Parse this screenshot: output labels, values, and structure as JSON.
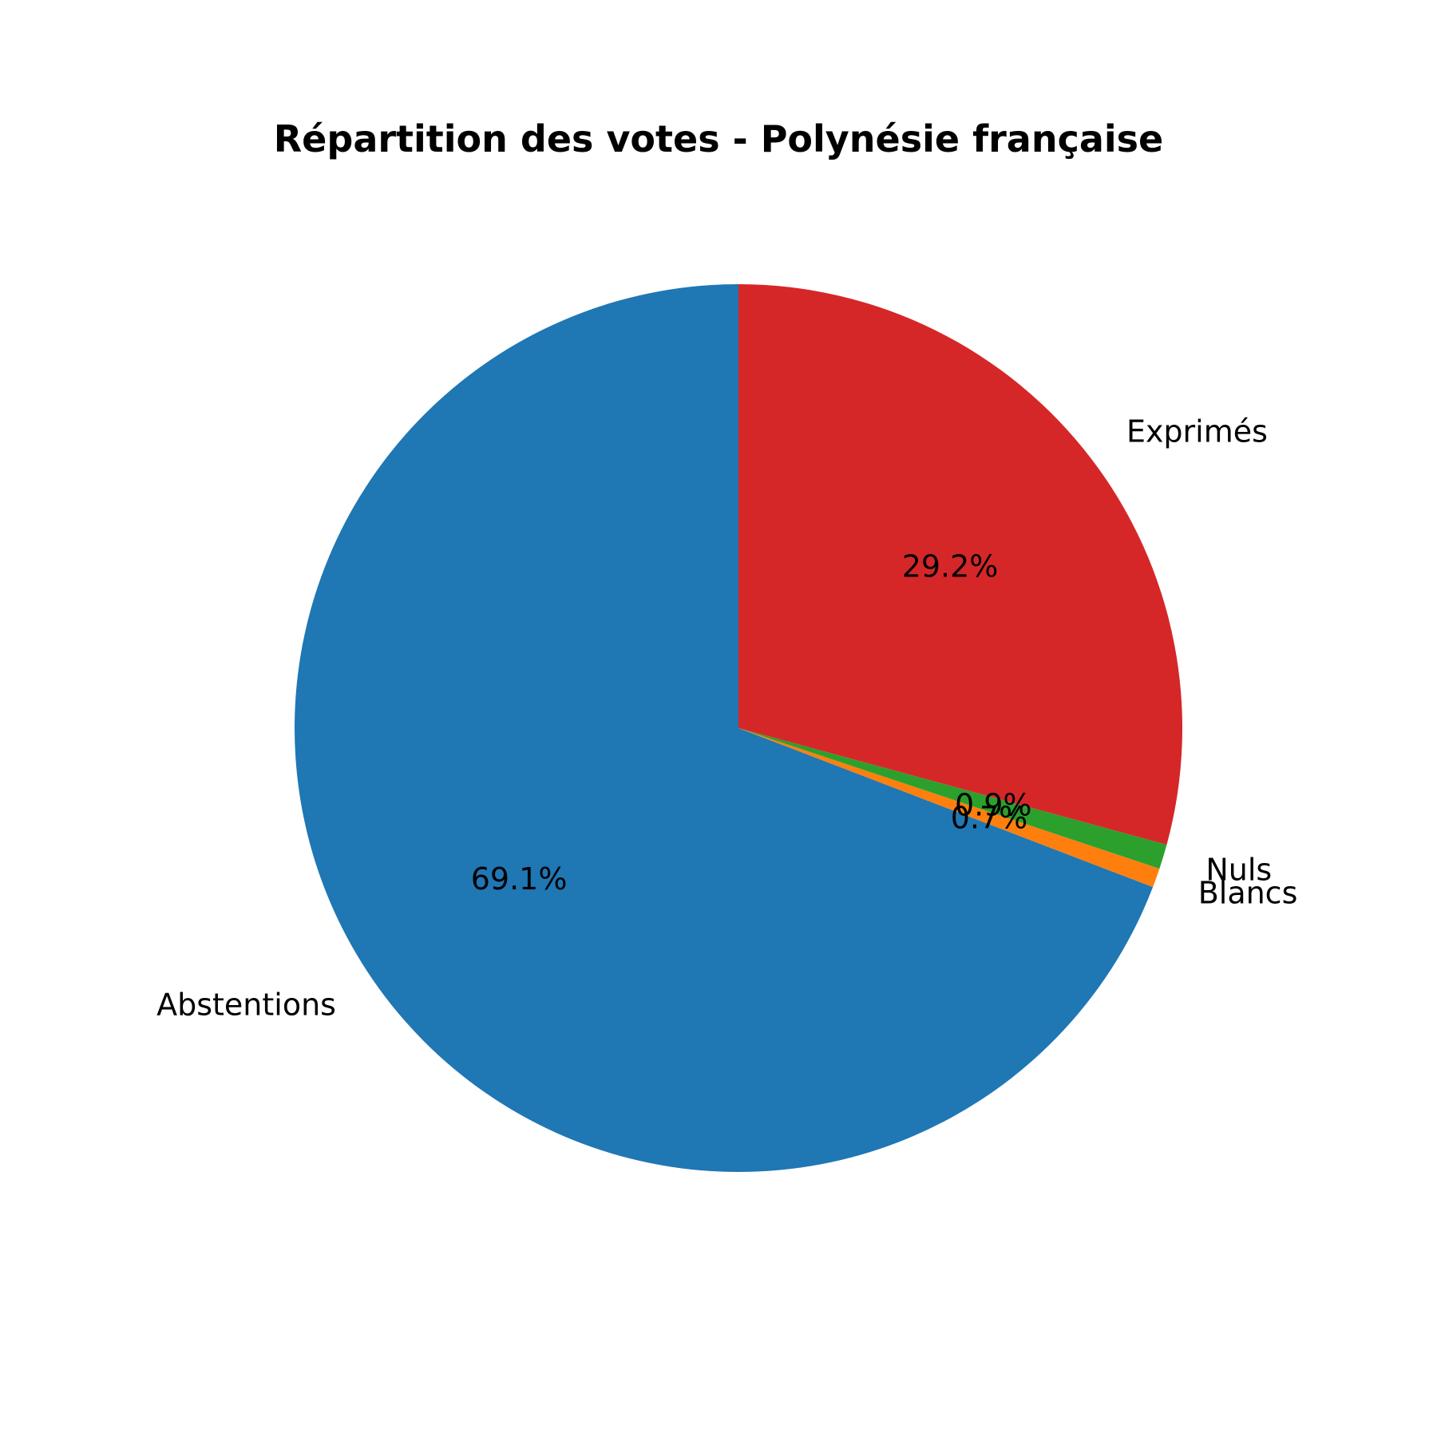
{
  "chart_data": {
    "type": "pie",
    "title": "Répartition des votes - Polynésie française",
    "start_angle_deg": 90,
    "direction": "counterclockwise",
    "slices": [
      {
        "label": "Abstentions",
        "value": 69.1,
        "pct_text": "69.1%",
        "color": "#1f77b4"
      },
      {
        "label": "Blancs",
        "value": 0.7,
        "pct_text": "0.7%",
        "color": "#ff7f0e"
      },
      {
        "label": "Nuls",
        "value": 0.9,
        "pct_text": "0.9%",
        "color": "#2ca02c"
      },
      {
        "label": "Exprimés",
        "value": 29.2,
        "pct_text": "29.2%",
        "color": "#d62728"
      }
    ]
  }
}
